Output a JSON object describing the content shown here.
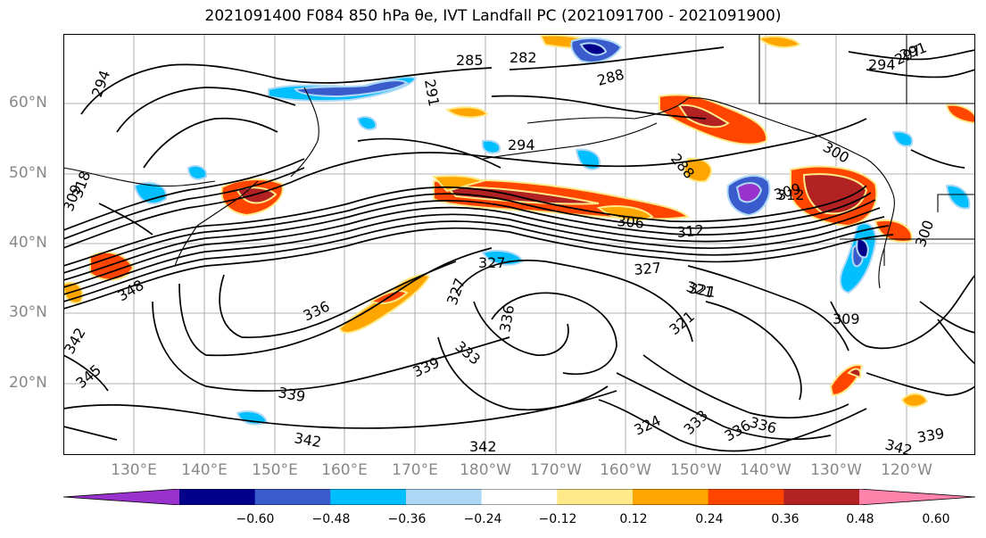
{
  "title": "2021091400 F084 850 hPa θe, IVT Landfall PC (2021091700 - 2021091900)",
  "lat_labels": [
    "60°N",
    "50°N",
    "40°N",
    "30°N",
    "20°N"
  ],
  "lon_labels": [
    "130°E",
    "140°E",
    "150°E",
    "160°E",
    "170°E",
    "180°W",
    "170°W",
    "160°W",
    "150°W",
    "140°W",
    "130°W",
    "120°W"
  ],
  "colorbar": {
    "colors": [
      "#9932cc",
      "#00008b",
      "#3a5bcc",
      "#00bfff",
      "#add8f6",
      "#ffffff",
      "#ffe989",
      "#ffa500",
      "#ff4500",
      "#b22222",
      "#ff82ab"
    ],
    "tick_labels": [
      "−0.60",
      "−0.48",
      "−0.36",
      "−0.24",
      "−0.12",
      "0.12",
      "0.24",
      "0.36",
      "0.48",
      "0.60"
    ]
  },
  "contour_labels": [
    "294",
    "291",
    "285",
    "282",
    "288",
    "294",
    "288",
    "291",
    "294",
    "297",
    "300",
    "306",
    "309",
    "312",
    "300",
    "309",
    "312",
    "321",
    "327",
    "327",
    "327",
    "321",
    "321",
    "336",
    "336",
    "333",
    "339",
    "339",
    "342",
    "342",
    "345",
    "348",
    "342",
    "324",
    "333",
    "336",
    "336",
    "342",
    "339",
    "309",
    "318"
  ],
  "map_colors": {
    "orange": "#ffa500",
    "red_orange": "#ff4500",
    "dark_red": "#b22222",
    "yellow": "#ffe989",
    "light_blue": "#add8f6",
    "deep_sky": "#00bfff",
    "medium_blue": "#3a5bcc",
    "navy": "#00008b",
    "purple": "#9932cc"
  }
}
